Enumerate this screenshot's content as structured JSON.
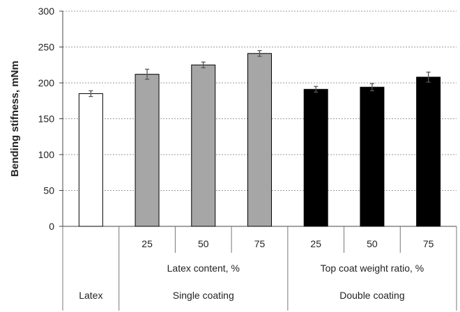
{
  "chart_data": {
    "type": "bar",
    "ylabel": "Bending stifness, mNm",
    "ylim": [
      0,
      300
    ],
    "yticks": [
      0,
      50,
      100,
      150,
      200,
      250,
      300
    ],
    "grid": true,
    "bars": [
      {
        "label": "",
        "value": 185,
        "error": 4,
        "color": "#ffffff"
      },
      {
        "label": "25",
        "value": 212,
        "error": 7,
        "color": "#a6a6a6"
      },
      {
        "label": "50",
        "value": 225,
        "error": 4,
        "color": "#a6a6a6"
      },
      {
        "label": "75",
        "value": 241,
        "error": 4,
        "color": "#a6a6a6"
      },
      {
        "label": "25",
        "value": 191,
        "error": 4,
        "color": "#000000"
      },
      {
        "label": "50",
        "value": 194,
        "error": 5,
        "color": "#000000"
      },
      {
        "label": "75",
        "value": 208,
        "error": 7,
        "color": "#000000"
      }
    ],
    "group_labels": [
      {
        "text": "Latex content, %",
        "span": [
          1,
          3
        ]
      },
      {
        "text": "Top coat weight ratio, %",
        "span": [
          4,
          6
        ]
      }
    ],
    "category_labels": [
      {
        "text": "Latex",
        "span": [
          0,
          0
        ]
      },
      {
        "text": "Single coating",
        "span": [
          1,
          3
        ]
      },
      {
        "text": "Double coating",
        "span": [
          4,
          6
        ]
      }
    ]
  }
}
